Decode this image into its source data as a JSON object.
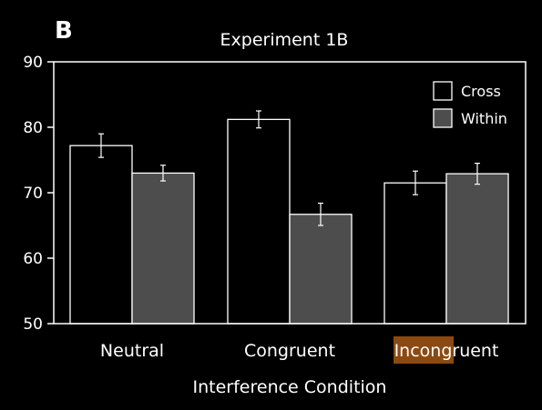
{
  "panel_letter": "B",
  "chart_data": {
    "type": "bar",
    "title": "Experiment 1B",
    "xlabel": "Interference Condition",
    "ylabel": "",
    "ylim": [
      50,
      90
    ],
    "yticks": [
      50,
      60,
      70,
      80,
      90
    ],
    "categories": [
      "Neutral",
      "Congruent",
      "Incongruent"
    ],
    "series": [
      {
        "name": "Cross",
        "values": [
          77.2,
          81.2,
          71.5
        ],
        "errors": [
          1.8,
          1.3,
          1.8
        ],
        "color": "#000000"
      },
      {
        "name": "Within",
        "values": [
          73.0,
          66.7,
          72.9
        ],
        "errors": [
          1.2,
          1.7,
          1.6
        ],
        "color": "#4d4d4d"
      }
    ],
    "legend_position": "top-right",
    "grid": false,
    "highlight": {
      "category": "Incongruent",
      "color": "#8a4a12"
    }
  }
}
